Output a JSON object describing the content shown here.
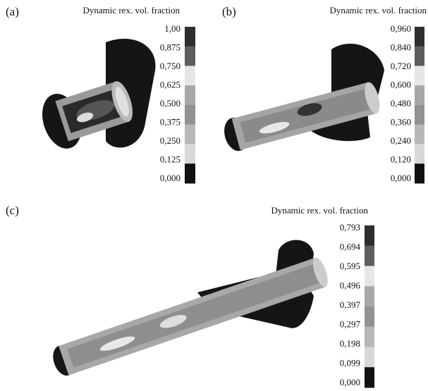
{
  "panels": [
    {
      "label": "(a)",
      "legend_title": "Dynamic rex. vol. fraction",
      "ticks": [
        "1,00",
        "0,875",
        "0,750",
        "0,625",
        "0,500",
        "0,375",
        "0,250",
        "0,125",
        "0,000"
      ]
    },
    {
      "label": "(b)",
      "legend_title": "Dynamic rex. vol. fraction",
      "ticks": [
        "0,960",
        "0,840",
        "0,720",
        "0,600",
        "0,480",
        "0,360",
        "0,240",
        "0,120",
        "0,000"
      ]
    },
    {
      "label": "(c)",
      "legend_title": "Dynamic rex. vol. fraction",
      "ticks": [
        "0,793",
        "0,694",
        "0,595",
        "0,496",
        "0,397",
        "0,297",
        "0,198",
        "0,099",
        "0,000"
      ]
    }
  ]
}
